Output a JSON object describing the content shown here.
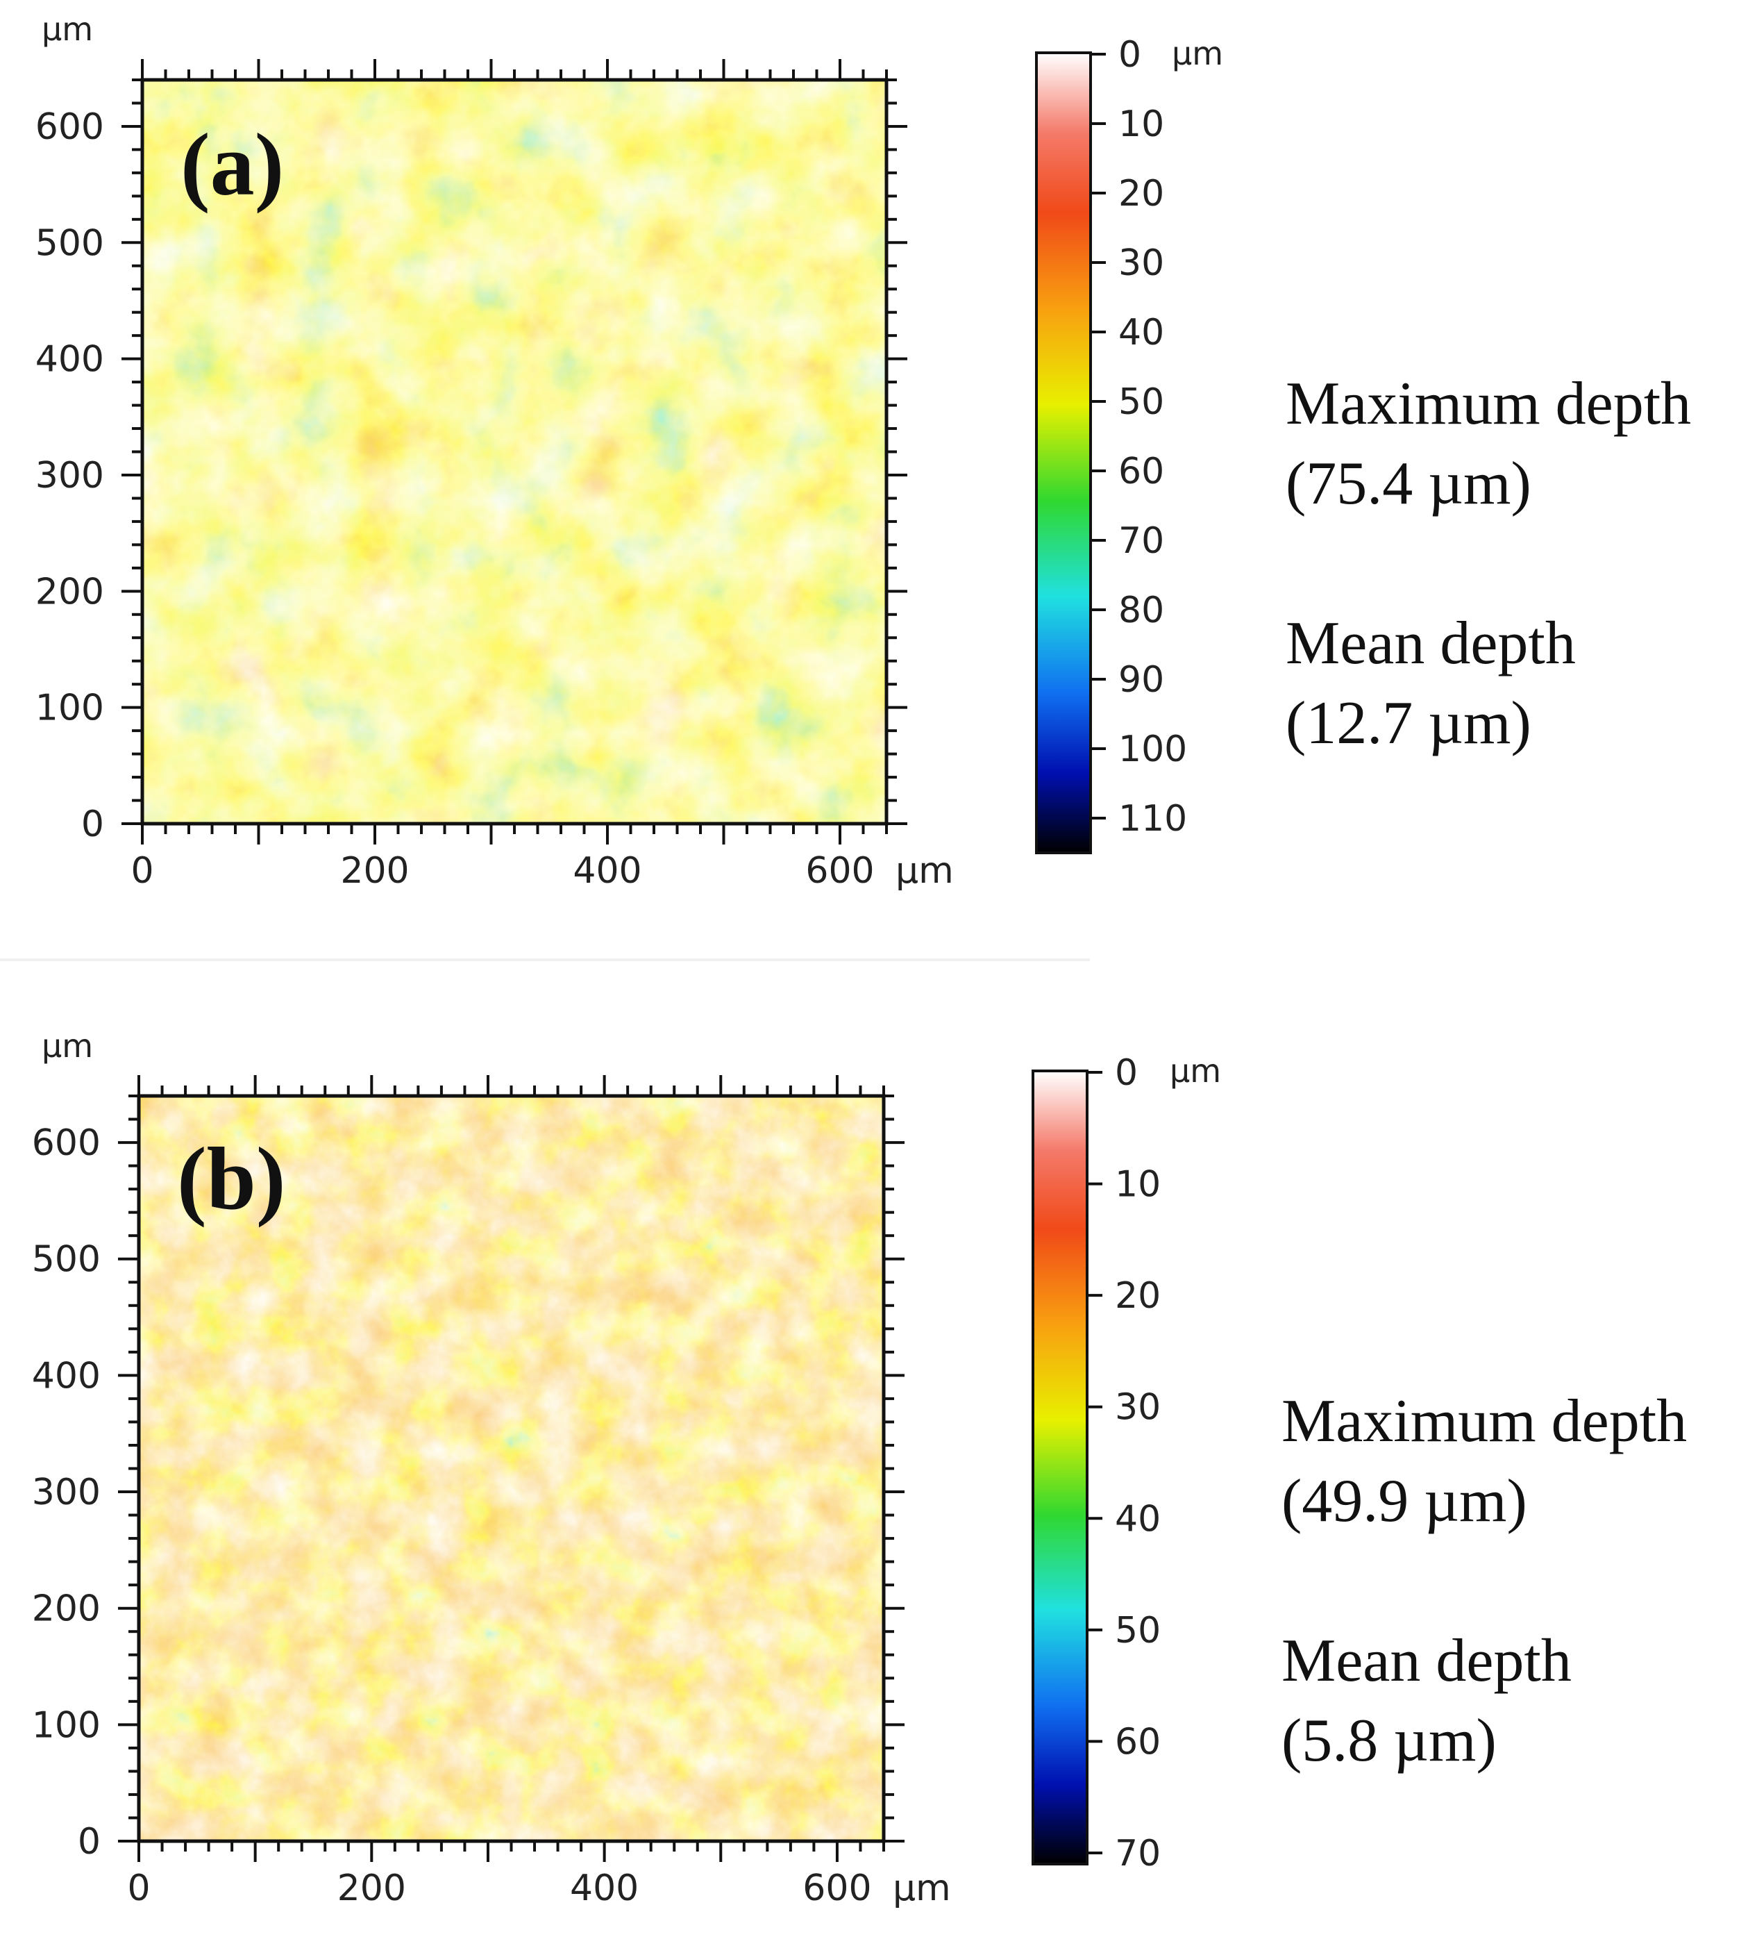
{
  "chart_data": [
    {
      "type": "heatmap",
      "panel_label": "(a)",
      "unit": "µm",
      "x_ticks": [
        "0",
        "200",
        "400",
        "600"
      ],
      "y_ticks": [
        "0",
        "100",
        "200",
        "300",
        "400",
        "500",
        "600"
      ],
      "xlim": [
        0,
        640
      ],
      "ylim": [
        0,
        640
      ],
      "colorbar": {
        "unit": "µm",
        "min": 0,
        "max": 115,
        "ticks": [
          "0",
          "10",
          "20",
          "30",
          "40",
          "50",
          "60",
          "70",
          "80",
          "90",
          "100",
          "110"
        ],
        "tick_values": [
          0,
          10,
          20,
          30,
          40,
          50,
          60,
          70,
          80,
          90,
          100,
          110
        ]
      },
      "stats": [
        {
          "name": "Maximum depth",
          "value": "(75.4 µm)"
        },
        {
          "name": "Mean depth",
          "value": "(12.7 µm)"
        }
      ]
    },
    {
      "type": "heatmap",
      "panel_label": "(b)",
      "unit": "µm",
      "x_ticks": [
        "0",
        "200",
        "400",
        "600"
      ],
      "y_ticks": [
        "0",
        "100",
        "200",
        "300",
        "400",
        "500",
        "600"
      ],
      "xlim": [
        0,
        640
      ],
      "ylim": [
        0,
        640
      ],
      "colorbar": {
        "unit": "µm",
        "min": 0,
        "max": 71,
        "ticks": [
          "0",
          "10",
          "20",
          "30",
          "40",
          "50",
          "60",
          "70"
        ],
        "tick_values": [
          0,
          10,
          20,
          30,
          40,
          50,
          60,
          70
        ]
      },
      "stats": [
        {
          "name": "Maximum depth",
          "value": "(49.9 µm)"
        },
        {
          "name": "Mean depth",
          "value": "(5.8 µm)"
        }
      ]
    }
  ],
  "colors": {
    "scale": [
      "#ffffff",
      "#f47a6a",
      "#f04a18",
      "#f8a010",
      "#e8f000",
      "#30d830",
      "#20e0e0",
      "#1070f0",
      "#0010b0",
      "#000000"
    ],
    "background_a": "#f07828",
    "background_b": "#f48a26"
  }
}
